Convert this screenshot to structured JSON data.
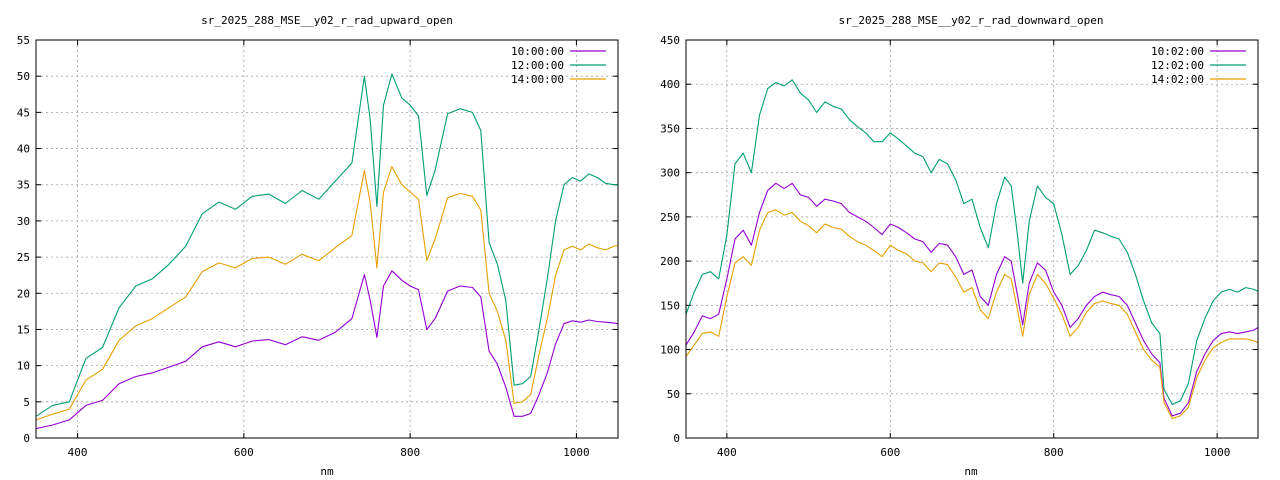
{
  "chart_data": [
    {
      "type": "line",
      "title": "sr_2025_288_MSE__y02_r_rad_upward_open",
      "xlabel": "nm",
      "ylabel": "",
      "xlim": [
        350,
        1050
      ],
      "ylim": [
        0,
        55
      ],
      "xticks": [
        400,
        600,
        800,
        1000
      ],
      "yticks": [
        0,
        5,
        10,
        15,
        20,
        25,
        30,
        35,
        40,
        45,
        50,
        55
      ],
      "grid": true,
      "legend": "top-right",
      "x": [
        350,
        370,
        390,
        410,
        430,
        450,
        470,
        490,
        510,
        530,
        550,
        570,
        590,
        610,
        630,
        650,
        670,
        690,
        710,
        730,
        745,
        752,
        760,
        768,
        778,
        790,
        800,
        810,
        820,
        830,
        845,
        860,
        875,
        885,
        895,
        905,
        915,
        925,
        935,
        945,
        955,
        965,
        975,
        985,
        995,
        1005,
        1015,
        1025,
        1035,
        1045,
        1050
      ],
      "series": [
        {
          "name": "10:00:00",
          "color": "#9400d3",
          "values": [
            1.3,
            1.8,
            2.5,
            4.5,
            5.2,
            7.5,
            8.5,
            9.0,
            9.8,
            10.6,
            12.6,
            13.3,
            12.6,
            13.4,
            13.6,
            12.9,
            14.0,
            13.5,
            14.6,
            16.5,
            22.6,
            19.0,
            13.9,
            21.0,
            23.1,
            21.8,
            21.0,
            20.5,
            15.0,
            16.5,
            20.3,
            21.0,
            20.8,
            19.5,
            12.0,
            10.2,
            7.0,
            3.0,
            3.0,
            3.4,
            6.0,
            9.0,
            13.0,
            15.8,
            16.2,
            16.0,
            16.3,
            16.1,
            16.0,
            15.9,
            15.8
          ]
        },
        {
          "name": "12:00:00",
          "color": "#009e73",
          "values": [
            3.0,
            4.5,
            5.0,
            11.0,
            12.5,
            18.0,
            21.0,
            22.0,
            24.0,
            26.5,
            31.0,
            32.6,
            31.6,
            33.4,
            33.7,
            32.4,
            34.2,
            33.0,
            35.5,
            38.0,
            50.0,
            44.0,
            32.0,
            46.0,
            50.3,
            47.0,
            46.0,
            44.5,
            33.5,
            37.0,
            44.8,
            45.5,
            45.0,
            42.5,
            27.0,
            24.0,
            19.0,
            7.3,
            7.5,
            8.5,
            15.0,
            22.0,
            30.0,
            35.0,
            36.0,
            35.5,
            36.5,
            36.0,
            35.2,
            35.0,
            35.0
          ]
        },
        {
          "name": "14:00:00",
          "color": "#e69f00",
          "values": [
            2.5,
            3.3,
            4.0,
            8.0,
            9.5,
            13.5,
            15.5,
            16.5,
            18.0,
            19.5,
            23.0,
            24.2,
            23.5,
            24.8,
            25.0,
            24.0,
            25.4,
            24.5,
            26.3,
            28.0,
            37.0,
            32.5,
            23.5,
            34.0,
            37.5,
            35.0,
            34.0,
            33.0,
            24.5,
            27.5,
            33.2,
            33.8,
            33.4,
            31.5,
            20.0,
            17.5,
            13.5,
            4.8,
            5.0,
            6.0,
            11.5,
            16.5,
            22.5,
            26.0,
            26.5,
            26.0,
            26.8,
            26.3,
            26.0,
            26.5,
            26.6
          ]
        }
      ]
    },
    {
      "type": "line",
      "title": "sr_2025_288_MSE__y02_r_rad_downward_open",
      "xlabel": "nm",
      "ylabel": "",
      "xlim": [
        350,
        1050
      ],
      "ylim": [
        0,
        450
      ],
      "xticks": [
        400,
        600,
        800,
        1000
      ],
      "yticks": [
        0,
        50,
        100,
        150,
        200,
        250,
        300,
        350,
        400,
        450
      ],
      "grid": true,
      "legend": "top-right",
      "x": [
        350,
        360,
        370,
        380,
        390,
        400,
        410,
        420,
        430,
        440,
        450,
        460,
        470,
        480,
        490,
        500,
        510,
        520,
        530,
        540,
        550,
        560,
        570,
        580,
        590,
        600,
        610,
        620,
        630,
        640,
        650,
        660,
        670,
        680,
        690,
        700,
        710,
        720,
        730,
        740,
        748,
        755,
        762,
        770,
        780,
        790,
        800,
        810,
        820,
        830,
        840,
        850,
        860,
        870,
        880,
        890,
        900,
        910,
        920,
        930,
        935,
        945,
        955,
        965,
        975,
        985,
        995,
        1005,
        1015,
        1025,
        1035,
        1045,
        1050
      ],
      "series": [
        {
          "name": "10:02:00",
          "color": "#9400d3",
          "values": [
            105,
            120,
            138,
            135,
            140,
            180,
            225,
            235,
            218,
            255,
            280,
            288,
            282,
            288,
            275,
            272,
            262,
            270,
            268,
            265,
            255,
            250,
            245,
            238,
            230,
            242,
            238,
            232,
            225,
            222,
            210,
            220,
            218,
            205,
            185,
            190,
            160,
            150,
            185,
            205,
            200,
            165,
            128,
            175,
            198,
            190,
            165,
            150,
            125,
            135,
            150,
            160,
            165,
            162,
            160,
            150,
            130,
            110,
            95,
            85,
            45,
            25,
            28,
            40,
            75,
            95,
            110,
            118,
            120,
            118,
            120,
            122,
            125
          ]
        },
        {
          "name": "12:02:00",
          "color": "#009e73",
          "values": [
            140,
            165,
            185,
            188,
            180,
            230,
            310,
            322,
            300,
            365,
            395,
            402,
            398,
            405,
            390,
            382,
            368,
            380,
            375,
            372,
            360,
            352,
            345,
            335,
            335,
            345,
            338,
            330,
            322,
            318,
            300,
            315,
            310,
            292,
            265,
            270,
            238,
            215,
            265,
            295,
            285,
            235,
            175,
            245,
            285,
            272,
            265,
            230,
            185,
            195,
            212,
            235,
            232,
            228,
            225,
            210,
            185,
            155,
            130,
            118,
            55,
            38,
            42,
            62,
            110,
            135,
            155,
            165,
            168,
            165,
            170,
            168,
            166
          ]
        },
        {
          "name": "14:02:00",
          "color": "#e69f00",
          "values": [
            92,
            105,
            118,
            120,
            115,
            160,
            198,
            205,
            195,
            235,
            255,
            258,
            252,
            255,
            245,
            240,
            232,
            242,
            238,
            236,
            228,
            222,
            218,
            212,
            205,
            218,
            212,
            208,
            200,
            198,
            188,
            198,
            196,
            182,
            165,
            170,
            145,
            135,
            165,
            185,
            180,
            148,
            115,
            162,
            185,
            175,
            158,
            140,
            115,
            125,
            142,
            152,
            155,
            152,
            150,
            140,
            120,
            100,
            88,
            80,
            40,
            22,
            25,
            35,
            68,
            88,
            102,
            108,
            112,
            112,
            112,
            110,
            108
          ]
        }
      ]
    }
  ]
}
